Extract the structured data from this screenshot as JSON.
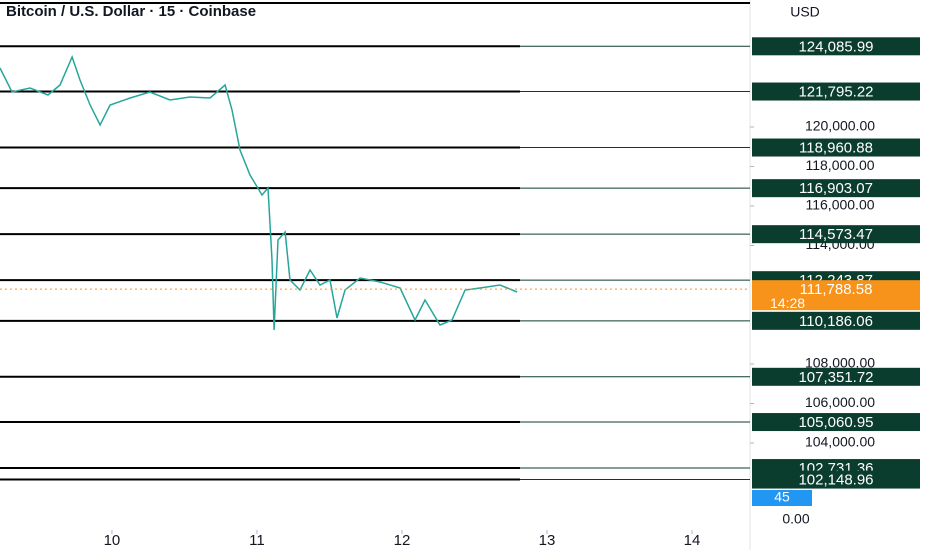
{
  "chart_data": {
    "type": "line",
    "title": "Bitcoin / U.S. Dollar · 15 · Coinbase",
    "currency": "USD",
    "color": "#26a69a",
    "x": [
      9.228,
      9.311,
      9.435,
      9.559,
      9.642,
      9.725,
      9.78,
      9.849,
      9.918,
      9.987,
      10.125,
      10.262,
      10.4,
      10.538,
      10.676,
      10.78,
      10.828,
      10.883,
      10.952,
      11.035,
      11.076,
      11.104,
      11.118,
      11.145,
      11.194,
      11.228,
      11.297,
      11.366,
      11.435,
      11.504,
      11.552,
      11.607,
      11.711,
      11.849,
      11.987,
      12.09,
      12.159,
      12.262,
      12.345,
      12.435,
      12.538,
      12.676,
      12.794
    ],
    "values": [
      122987,
      121772,
      121975,
      121620,
      122127,
      123544,
      122380,
      121114,
      120101,
      121114,
      121468,
      121772,
      121367,
      121519,
      121468,
      122127,
      120861,
      118835,
      117570,
      116557,
      116911,
      113266,
      109722,
      114278,
      114684,
      112253,
      111747,
      112759,
      111999,
      112253,
      110329,
      111747,
      112354,
      112152,
      111848,
      110228,
      111241,
      109975,
      110228,
      111747,
      111848,
      111999,
      111646
    ],
    "xlim": [
      9.228,
      14.4
    ],
    "xticks": [
      10,
      11,
      12,
      13,
      14
    ],
    "ylim": [
      101114,
      126430
    ],
    "yticks": [
      {
        "value": 104000,
        "label": "104,000.00"
      },
      {
        "value": 106000,
        "label": "106,000.00"
      },
      {
        "value": 108000,
        "label": "108,000.00"
      },
      {
        "value": 114000,
        "label": "114,000.00"
      },
      {
        "value": 116000,
        "label": "116,000.00"
      },
      {
        "value": 118000,
        "label": "118,000.00"
      },
      {
        "value": 120000,
        "label": "120,000.00"
      }
    ],
    "levels": [
      {
        "value": 124085.99,
        "label": "124,085.99"
      },
      {
        "value": 121795.22,
        "label": "121,795.22"
      },
      {
        "value": 118960.88,
        "label": "118,960.88"
      },
      {
        "value": 116903.07,
        "label": "116,903.07"
      },
      {
        "value": 114573.47,
        "label": "114,573.47"
      },
      {
        "value": 112243.87,
        "label": "112,243.87"
      },
      {
        "value": 110186.06,
        "label": "110,186.06"
      },
      {
        "value": 107351.72,
        "label": "107,351.72"
      },
      {
        "value": 105060.95,
        "label": "105,060.95"
      },
      {
        "value": 102731.36,
        "label": "102,731.36"
      },
      {
        "value": 102148.96,
        "label": "102,148.96"
      }
    ],
    "current_price": {
      "value": 111788.58,
      "label": "111,788.58",
      "countdown": "14:28"
    },
    "indicator_value": 45,
    "volume_axis_tick": {
      "value": 0,
      "label": "0.00"
    }
  }
}
